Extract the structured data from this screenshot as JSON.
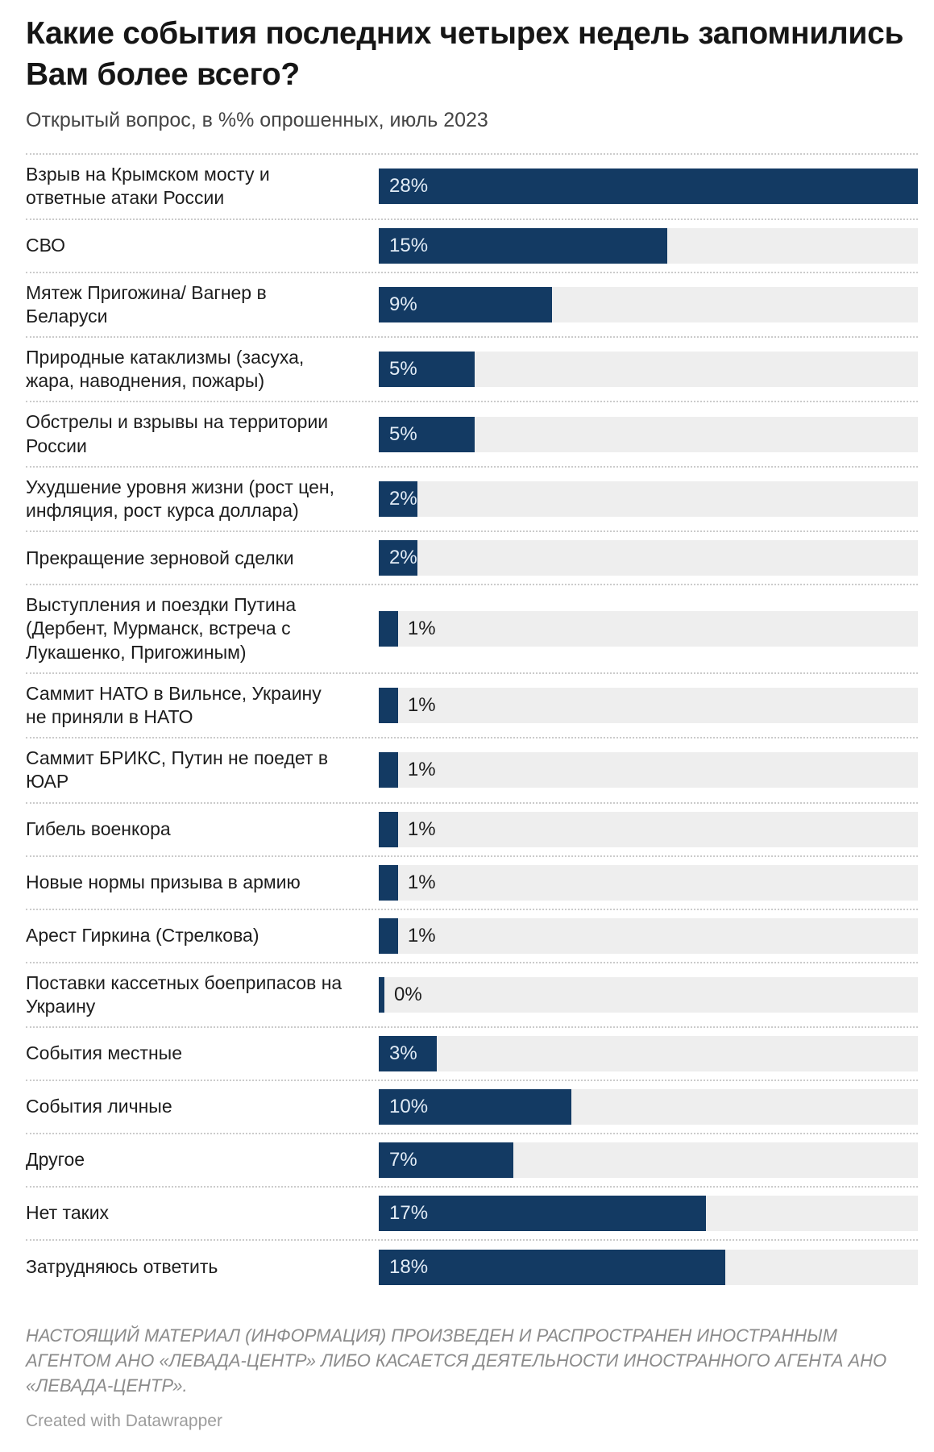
{
  "header": {
    "title": "Какие события последних четырех недель запомнились Вам более всего?",
    "subtitle": "Открытый вопрос, в %% опрошенных, июль 2023"
  },
  "chart_data": {
    "type": "bar",
    "orientation": "horizontal",
    "title": "Какие события последних четырех недель запомнились Вам более всего?",
    "subtitle": "Открытый вопрос, в %% опрошенных, июль 2023",
    "unit": "%",
    "xlim": [
      0,
      28
    ],
    "grid": false,
    "legend": false,
    "categories": [
      "Взрыв на Крымском мосту и ответные атаки России",
      "СВО",
      "Мятеж Пригожина/ Вагнер в Беларуси",
      "Природные катаклизмы (засуха, жара, наводнения, пожары)",
      "Обстрелы и взрывы на территории России",
      "Ухудшение уровня жизни (рост цен, инфляция, рост курса доллара)",
      "Прекращение зерновой сделки",
      "Выступления и поездки Путина (Дербент, Мурманск, встреча с Лукашенко, Пригожиным)",
      "Саммит НАТО в Вильнсе, Украину не приняли в НАТО",
      "Саммит БРИКС, Путин не поедет в ЮАР",
      "Гибель военкора",
      "Новые нормы призыва в армию",
      "Арест Гиркина (Стрелкова)",
      "Поставки кассетных боеприпасов на Украину",
      "События местные",
      "События личные",
      "Другое",
      "Нет таких",
      "Затрудняюсь ответить"
    ],
    "values": [
      28,
      15,
      9,
      5,
      5,
      2,
      2,
      1,
      1,
      1,
      1,
      1,
      1,
      0,
      3,
      10,
      7,
      17,
      18
    ],
    "value_labels": [
      "28%",
      "15%",
      "9%",
      "5%",
      "5%",
      "2%",
      "2%",
      "1%",
      "1%",
      "1%",
      "1%",
      "1%",
      "1%",
      "0%",
      "3%",
      "10%",
      "7%",
      "17%",
      "18%"
    ],
    "inside_label_min_value": 2,
    "colors": {
      "bar": "#133a63",
      "track": "#eeeeee",
      "value_inside": "#e2ecf6",
      "value_outside": "#1d1d1d"
    }
  },
  "footer": {
    "disclaimer": "НАСТОЯЩИЙ МАТЕРИАЛ (ИНФОРМАЦИЯ) ПРОИЗВЕДЕН И РАСПРОСТРАНЕН ИНОСТРАННЫМ АГЕНТОМ АНО «ЛЕВАДА-ЦЕНТР» ЛИБО КАСАЕТСЯ ДЕЯТЕЛЬНОСТИ ИНОСТРАННОГО АГЕНТА АНО «ЛЕВАДА-ЦЕНТР».",
    "attribution": "Created with Datawrapper"
  }
}
